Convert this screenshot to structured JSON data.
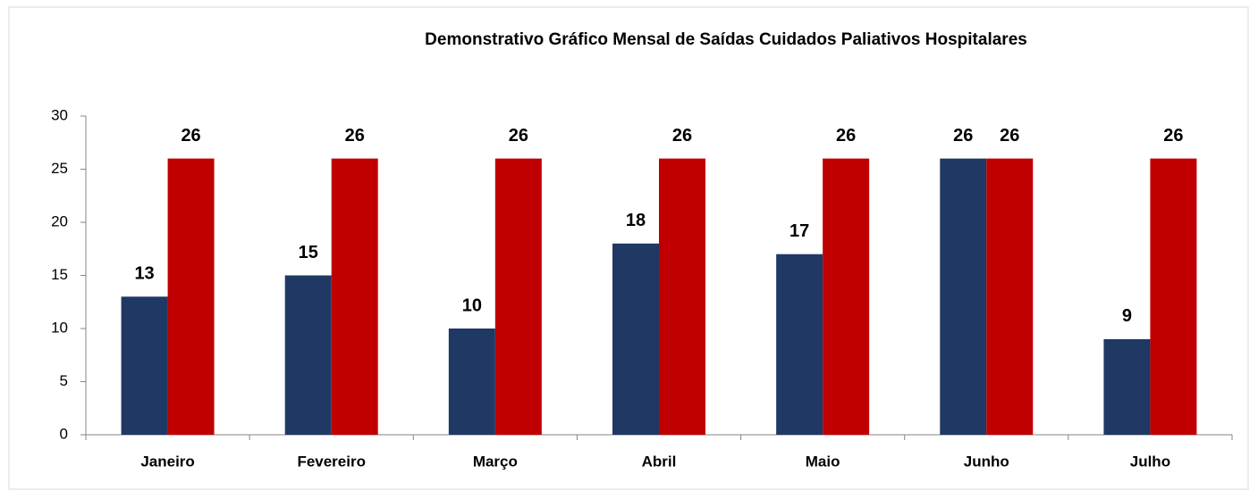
{
  "chart_data": {
    "type": "bar",
    "title": "Demonstrativo Gráfico Mensal de Saídas Cuidados Paliativos Hospitalares",
    "categories": [
      "Janeiro",
      "Fevereiro",
      "Março",
      "Abril",
      "Maio",
      "Junho",
      "Julho"
    ],
    "series": [
      {
        "color": "#1f3864",
        "values": [
          13,
          15,
          10,
          18,
          17,
          26,
          9
        ]
      },
      {
        "color": "#c00000",
        "values": [
          26,
          26,
          26,
          26,
          26,
          26,
          26
        ]
      }
    ],
    "ylim": [
      0,
      30
    ],
    "yticks": [
      0,
      5,
      10,
      15,
      20,
      25,
      30
    ],
    "grid": false
  }
}
